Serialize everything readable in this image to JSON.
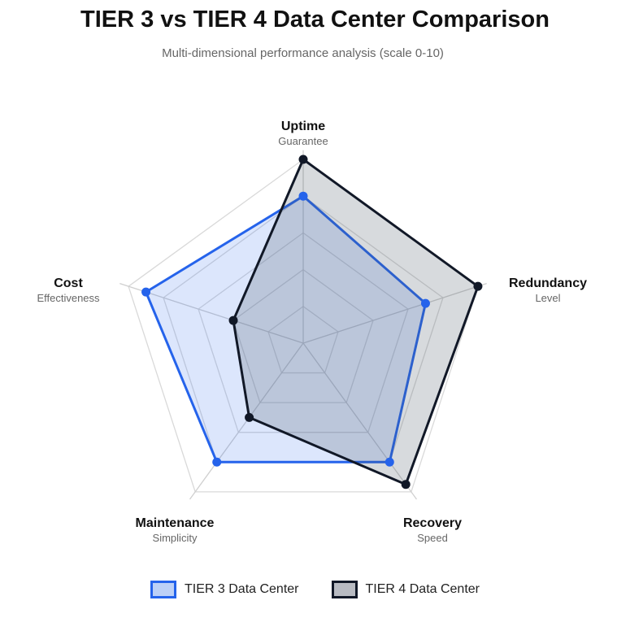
{
  "title": "TIER 3 vs TIER 4 Data Center Comparison",
  "subtitle": "Multi-dimensional performance analysis (scale 0-10)",
  "chart_data": {
    "type": "radar",
    "title": "TIER 3 vs TIER 4 Data Center Comparison",
    "subtitle": "Multi-dimensional performance analysis (scale 0-10)",
    "axes": [
      {
        "label": "Uptime",
        "sublabel": "Guarantee"
      },
      {
        "label": "Redundancy",
        "sublabel": "Level"
      },
      {
        "label": "Recovery",
        "sublabel": "Speed"
      },
      {
        "label": "Maintenance",
        "sublabel": "Simplicity"
      },
      {
        "label": "Cost",
        "sublabel": "Effectiveness"
      }
    ],
    "range": [
      0,
      10
    ],
    "grid_levels": [
      2,
      4,
      6,
      8,
      10
    ],
    "series": [
      {
        "name": "TIER 3 Data Center",
        "values": [
          8,
          7,
          8,
          8,
          9
        ],
        "color": "#2563eb",
        "fill": "rgba(37,99,235,0.16)"
      },
      {
        "name": "TIER 4 Data Center",
        "values": [
          10,
          10,
          9.5,
          5,
          4
        ],
        "color": "#111827",
        "fill": "rgba(75,85,99,0.22)"
      }
    ],
    "legend": "bottom"
  }
}
